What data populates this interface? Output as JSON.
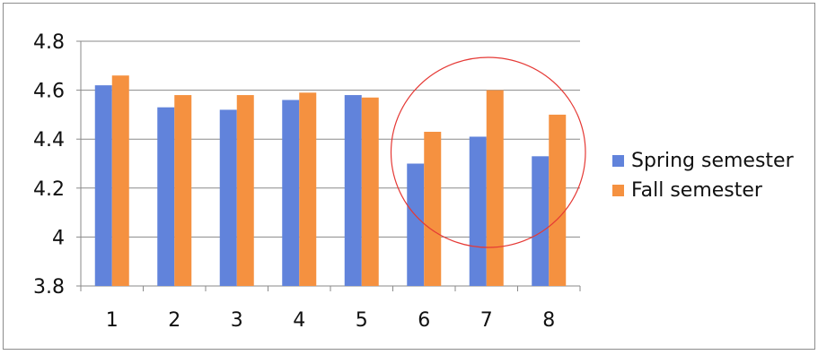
{
  "chart_data": {
    "type": "bar",
    "title": "",
    "xlabel": "",
    "ylabel": "",
    "categories": [
      "1",
      "2",
      "3",
      "4",
      "5",
      "6",
      "7",
      "8"
    ],
    "series": [
      {
        "name": "Spring semester",
        "color": "#6183DB",
        "values": [
          4.62,
          4.53,
          4.52,
          4.56,
          4.58,
          4.3,
          4.41,
          4.33
        ]
      },
      {
        "name": "Fall semester",
        "color": "#F59140",
        "values": [
          4.66,
          4.58,
          4.58,
          4.59,
          4.57,
          4.43,
          4.6,
          4.5
        ]
      }
    ],
    "ylim": [
      3.8,
      4.8
    ],
    "yticks": [
      "3.8",
      "4",
      "4.2",
      "4.4",
      "4.6",
      "4.8"
    ],
    "grid": true,
    "legend_position": "right",
    "annotation": {
      "shape": "circle",
      "color": "#E53935",
      "highlights_categories": [
        "6",
        "7",
        "8"
      ]
    }
  }
}
